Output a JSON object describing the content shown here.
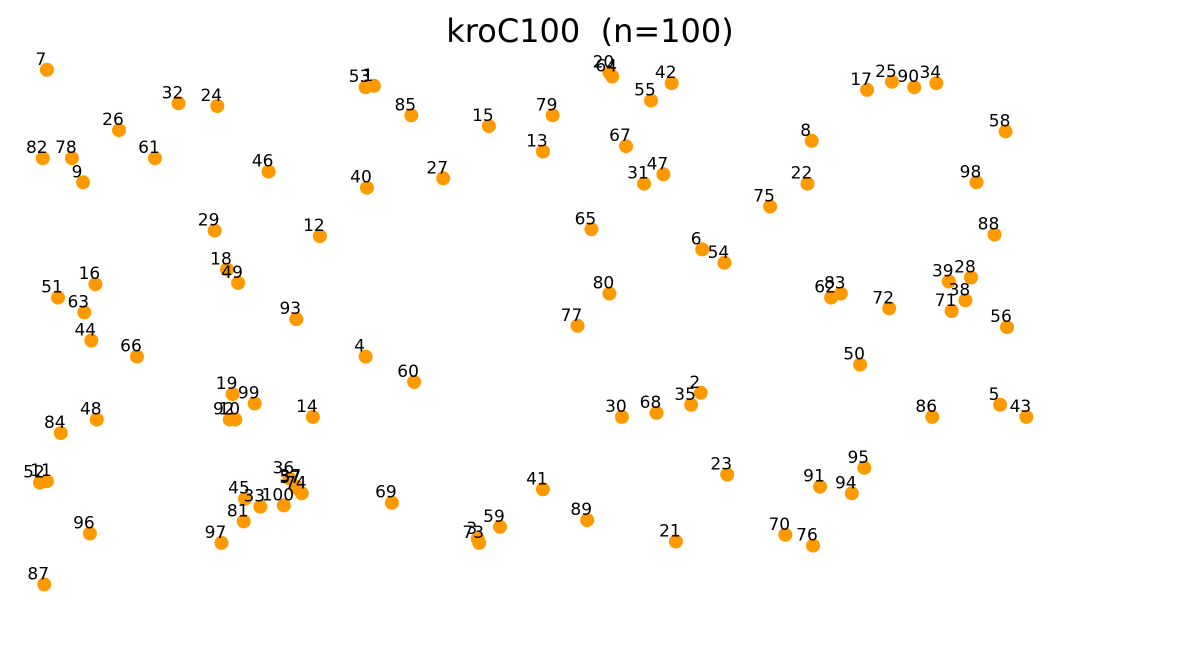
{
  "chart_data": {
    "type": "scatter",
    "title": "kroC100  (n=100)",
    "xlabel": "",
    "ylabel": "",
    "grid": false,
    "axes_visible": false,
    "marker_color": "#ff9900",
    "label_color": "#000000",
    "xlim": [
      -50,
      4050
    ],
    "ylim": [
      -80,
      2080
    ],
    "points": [
      {
        "label": "1",
        "x": 1220,
        "y": 1950
      },
      {
        "label": "2",
        "x": 2400,
        "y": 805
      },
      {
        "label": "3",
        "x": 1595,
        "y": 260
      },
      {
        "label": "4",
        "x": 1190,
        "y": 940
      },
      {
        "label": "5",
        "x": 3480,
        "y": 760
      },
      {
        "label": "6",
        "x": 2405,
        "y": 1340
      },
      {
        "label": "7",
        "x": 40,
        "y": 2010
      },
      {
        "label": "8",
        "x": 2800,
        "y": 1745
      },
      {
        "label": "9",
        "x": 170,
        "y": 1590
      },
      {
        "label": "10",
        "x": 720,
        "y": 705
      },
      {
        "label": "11",
        "x": 40,
        "y": 475
      },
      {
        "label": "12",
        "x": 1025,
        "y": 1390
      },
      {
        "label": "13",
        "x": 1830,
        "y": 1705
      },
      {
        "label": "14",
        "x": 1000,
        "y": 715
      },
      {
        "label": "15",
        "x": 1635,
        "y": 1800
      },
      {
        "label": "16",
        "x": 215,
        "y": 1210
      },
      {
        "label": "17",
        "x": 3000,
        "y": 1935
      },
      {
        "label": "18",
        "x": 690,
        "y": 1265
      },
      {
        "label": "19",
        "x": 710,
        "y": 800
      },
      {
        "label": "20",
        "x": 2070,
        "y": 2000
      },
      {
        "label": "21",
        "x": 2310,
        "y": 250
      },
      {
        "label": "22",
        "x": 2785,
        "y": 1585
      },
      {
        "label": "23",
        "x": 2495,
        "y": 500
      },
      {
        "label": "24",
        "x": 655,
        "y": 1875
      },
      {
        "label": "25",
        "x": 3090,
        "y": 1965
      },
      {
        "label": "26",
        "x": 300,
        "y": 1785
      },
      {
        "label": "27",
        "x": 1470,
        "y": 1605
      },
      {
        "label": "28",
        "x": 3375,
        "y": 1235
      },
      {
        "label": "29",
        "x": 645,
        "y": 1410
      },
      {
        "label": "30",
        "x": 2115,
        "y": 715
      },
      {
        "label": "31",
        "x": 2195,
        "y": 1585
      },
      {
        "label": "32",
        "x": 515,
        "y": 1885
      },
      {
        "label": "33",
        "x": 810,
        "y": 380
      },
      {
        "label": "34",
        "x": 3250,
        "y": 1960
      },
      {
        "label": "35",
        "x": 2365,
        "y": 760
      },
      {
        "label": "36",
        "x": 915,
        "y": 485
      },
      {
        "label": "37",
        "x": 940,
        "y": 455
      },
      {
        "label": "38",
        "x": 3355,
        "y": 1150
      },
      {
        "label": "39",
        "x": 3295,
        "y": 1220
      },
      {
        "label": "40",
        "x": 1195,
        "y": 1570
      },
      {
        "label": "41",
        "x": 1830,
        "y": 445
      },
      {
        "label": "42",
        "x": 2295,
        "y": 1960
      },
      {
        "label": "43",
        "x": 3575,
        "y": 715
      },
      {
        "label": "44",
        "x": 200,
        "y": 1000
      },
      {
        "label": "45",
        "x": 755,
        "y": 410
      },
      {
        "label": "46",
        "x": 840,
        "y": 1630
      },
      {
        "label": "47",
        "x": 2265,
        "y": 1620
      },
      {
        "label": "48",
        "x": 220,
        "y": 705
      },
      {
        "label": "49",
        "x": 730,
        "y": 1215
      },
      {
        "label": "50",
        "x": 2975,
        "y": 910
      },
      {
        "label": "51",
        "x": 80,
        "y": 1160
      },
      {
        "label": "52",
        "x": 15,
        "y": 470
      },
      {
        "label": "53",
        "x": 1190,
        "y": 1945
      },
      {
        "label": "54",
        "x": 2485,
        "y": 1290
      },
      {
        "label": "55",
        "x": 2220,
        "y": 1895
      },
      {
        "label": "56",
        "x": 3505,
        "y": 1050
      },
      {
        "label": "57",
        "x": 940,
        "y": 450
      },
      {
        "label": "58",
        "x": 3500,
        "y": 1780
      },
      {
        "label": "59",
        "x": 1675,
        "y": 305
      },
      {
        "label": "60",
        "x": 1365,
        "y": 845
      },
      {
        "label": "61",
        "x": 430,
        "y": 1680
      },
      {
        "label": "62",
        "x": 2870,
        "y": 1160
      },
      {
        "label": "63",
        "x": 175,
        "y": 1105
      },
      {
        "label": "64",
        "x": 2080,
        "y": 1985
      },
      {
        "label": "65",
        "x": 2005,
        "y": 1415
      },
      {
        "label": "66",
        "x": 365,
        "y": 940
      },
      {
        "label": "67",
        "x": 2130,
        "y": 1725
      },
      {
        "label": "68",
        "x": 2240,
        "y": 730
      },
      {
        "label": "69",
        "x": 1285,
        "y": 395
      },
      {
        "label": "70",
        "x": 2705,
        "y": 275
      },
      {
        "label": "71",
        "x": 3305,
        "y": 1110
      },
      {
        "label": "72",
        "x": 3080,
        "y": 1120
      },
      {
        "label": "73",
        "x": 1600,
        "y": 245
      },
      {
        "label": "74",
        "x": 960,
        "y": 430
      },
      {
        "label": "75",
        "x": 2650,
        "y": 1500
      },
      {
        "label": "76",
        "x": 2805,
        "y": 235
      },
      {
        "label": "77",
        "x": 1955,
        "y": 1055
      },
      {
        "label": "78",
        "x": 130,
        "y": 1680
      },
      {
        "label": "79",
        "x": 1865,
        "y": 1840
      },
      {
        "label": "80",
        "x": 2070,
        "y": 1175
      },
      {
        "label": "81",
        "x": 750,
        "y": 325
      },
      {
        "label": "82",
        "x": 25,
        "y": 1680
      },
      {
        "label": "83",
        "x": 2905,
        "y": 1175
      },
      {
        "label": "84",
        "x": 90,
        "y": 655
      },
      {
        "label": "85",
        "x": 1355,
        "y": 1840
      },
      {
        "label": "86",
        "x": 3235,
        "y": 715
      },
      {
        "label": "87",
        "x": 30,
        "y": 90
      },
      {
        "label": "88",
        "x": 3460,
        "y": 1395
      },
      {
        "label": "89",
        "x": 1990,
        "y": 330
      },
      {
        "label": "90",
        "x": 3170,
        "y": 1945
      },
      {
        "label": "91",
        "x": 2830,
        "y": 455
      },
      {
        "label": "92",
        "x": 700,
        "y": 705
      },
      {
        "label": "93",
        "x": 940,
        "y": 1080
      },
      {
        "label": "94",
        "x": 2945,
        "y": 430
      },
      {
        "label": "95",
        "x": 2990,
        "y": 525
      },
      {
        "label": "96",
        "x": 195,
        "y": 280
      },
      {
        "label": "97",
        "x": 670,
        "y": 245
      },
      {
        "label": "98",
        "x": 3395,
        "y": 1590
      },
      {
        "label": "99",
        "x": 790,
        "y": 765
      },
      {
        "label": "100",
        "x": 895,
        "y": 385
      }
    ]
  }
}
